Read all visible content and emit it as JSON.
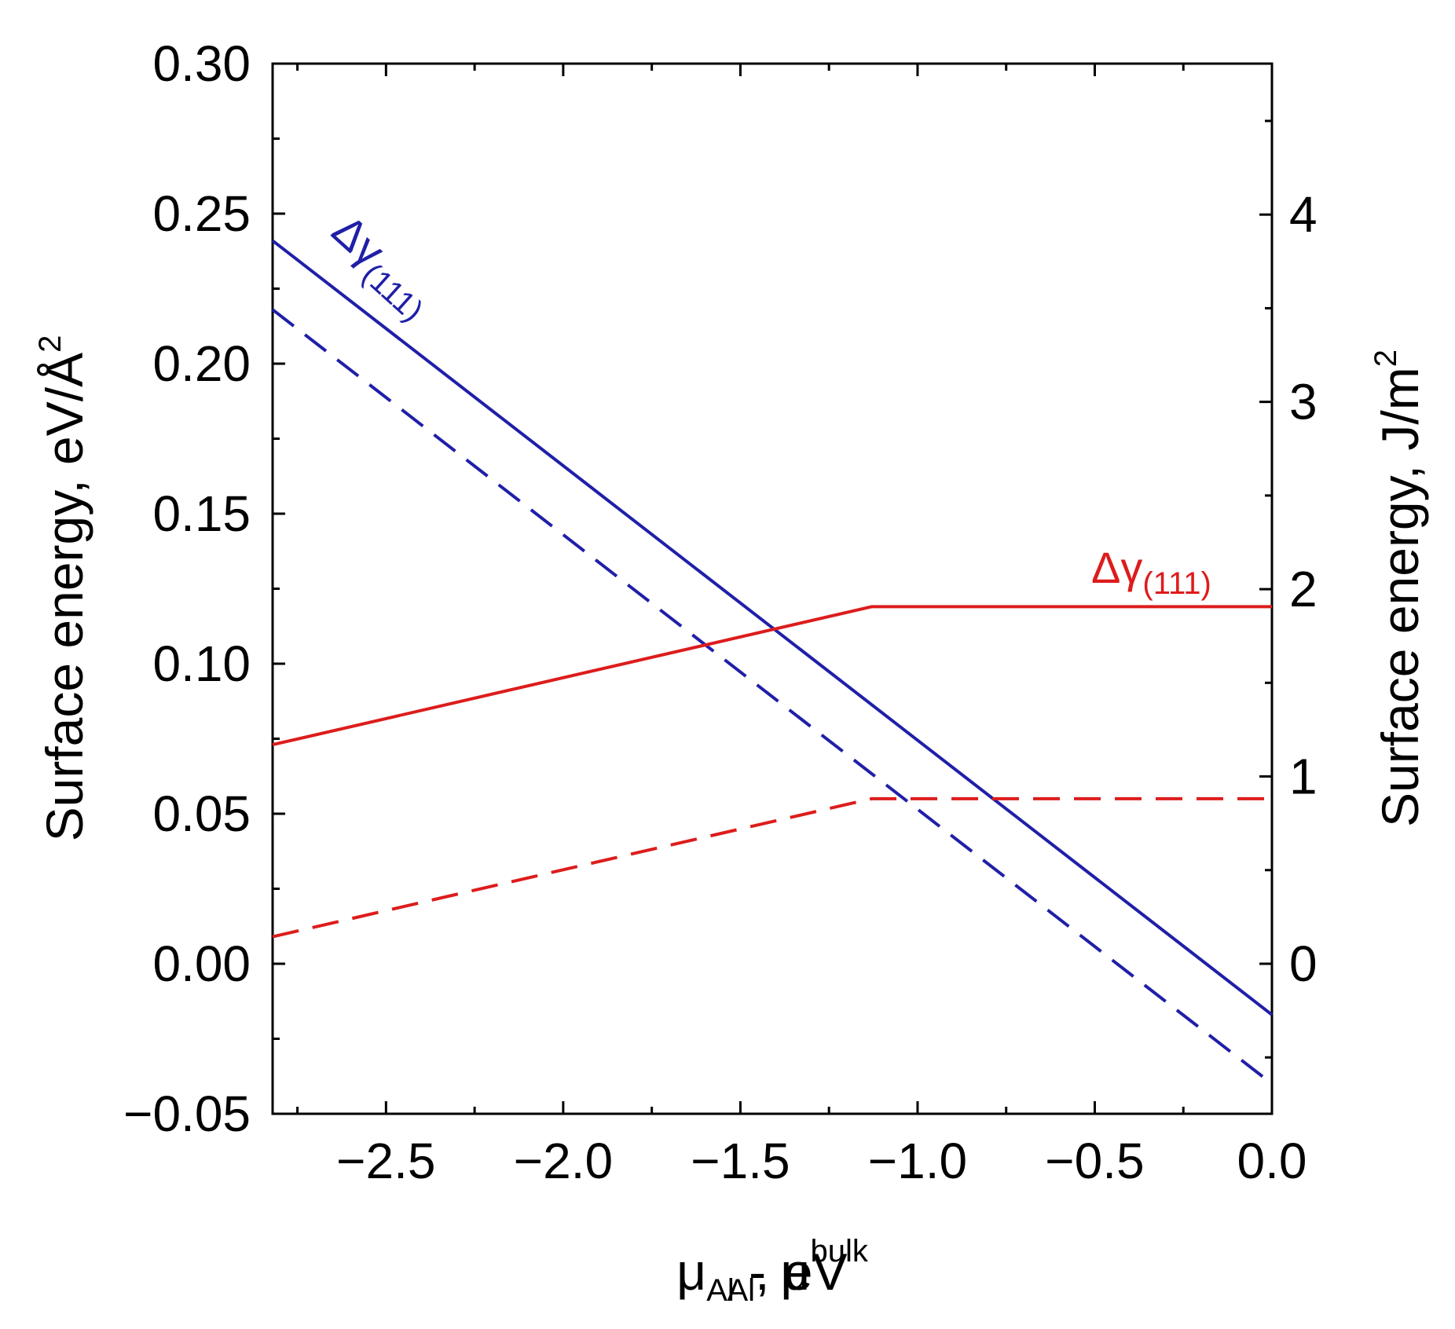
{
  "chart_data": {
    "type": "line",
    "title": "",
    "xlabel": {
      "prefix": "μ",
      "sub1": "Al",
      "middle": " - μ",
      "sup2": "bulk",
      "sub2": "Al",
      "suffix": ", eV"
    },
    "ylabel_left": {
      "text": "Surface energy, eV/Å",
      "sup": "2"
    },
    "ylabel_right": {
      "text": "Surface energy, J/m",
      "sup": "2"
    },
    "xlim": [
      -2.82,
      0.0
    ],
    "ylim_left": [
      -0.05,
      0.3
    ],
    "ylim_right": [
      -0.801,
      4.806
    ],
    "x_ticks": [
      -2.5,
      -2.0,
      -1.5,
      -1.0,
      -0.5,
      0.0
    ],
    "x_tick_labels": [
      "−2.5",
      "−2.0",
      "−1.5",
      "−1.0",
      "−0.5",
      "0.0"
    ],
    "y_left_ticks": [
      -0.05,
      0.0,
      0.05,
      0.1,
      0.15,
      0.2,
      0.25,
      0.3
    ],
    "y_left_tick_labels": [
      "−0.05",
      "0.00",
      "0.05",
      "0.10",
      "0.15",
      "0.20",
      "0.25",
      "0.30"
    ],
    "y_right_ticks": [
      0,
      1,
      2,
      3,
      4
    ],
    "y_right_tick_labels": [
      "0",
      "1",
      "2",
      "3",
      "4"
    ],
    "series": [
      {
        "name": "blue-solid",
        "color": "#1f1fa8",
        "dash": "solid",
        "x": [
          -2.82,
          0.0
        ],
        "y": [
          0.241,
          -0.017
        ]
      },
      {
        "name": "blue-dashed",
        "color": "#1f1fa8",
        "dash": "dashed",
        "x": [
          -2.82,
          0.0
        ],
        "y": [
          0.218,
          -0.04
        ]
      },
      {
        "name": "red-solid",
        "color": "#dd1c1c",
        "dash": "solid",
        "x": [
          -2.82,
          -1.13,
          0.0
        ],
        "y": [
          0.073,
          0.119,
          0.119
        ]
      },
      {
        "name": "red-dashed",
        "color": "#dd1c1c",
        "dash": "dashed",
        "x": [
          -2.82,
          -1.13,
          0.0
        ],
        "y": [
          0.009,
          0.055,
          0.055
        ]
      }
    ],
    "annotations": [
      {
        "name": "blue-annotation",
        "prefix": "Δγ",
        "sub": "(111)",
        "color": "#1f1fa8",
        "x": -2.66,
        "y": 0.243,
        "angle": 42
      },
      {
        "name": "red-annotation",
        "prefix": "Δγ",
        "sub": "(111)",
        "color": "#dd1c1c",
        "x": -0.51,
        "y": 0.127,
        "angle": 0
      }
    ]
  }
}
